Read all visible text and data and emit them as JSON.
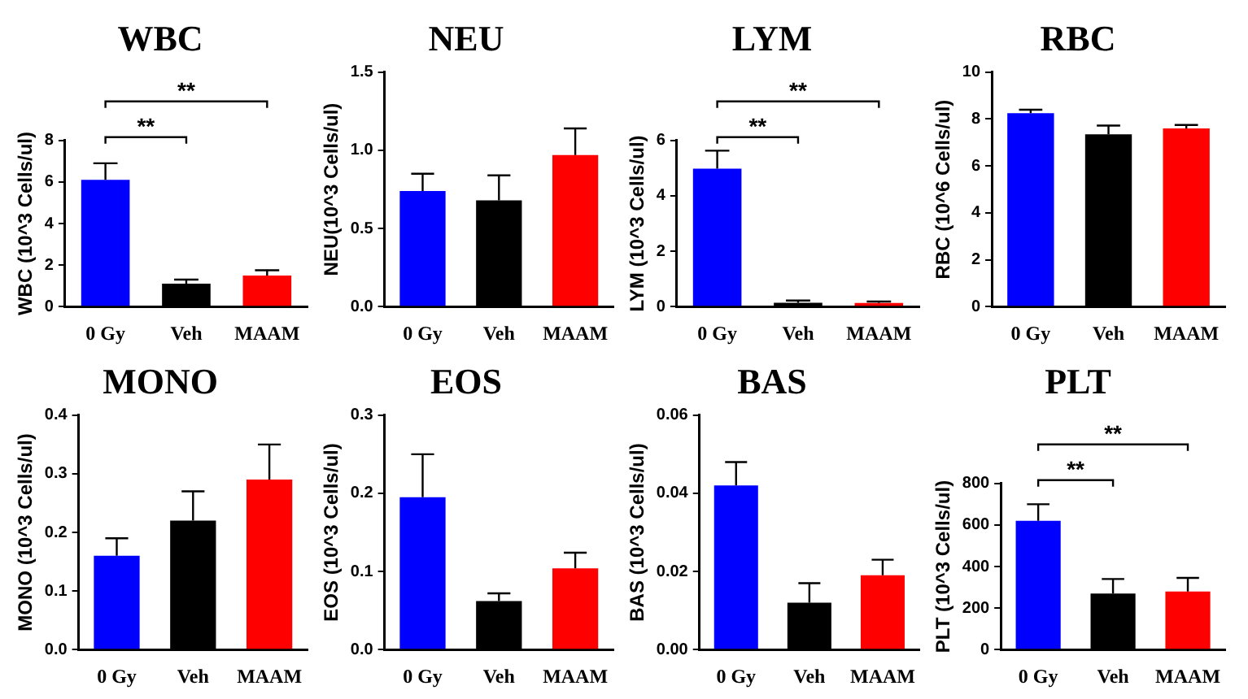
{
  "chart_data": [
    {
      "type": "bar",
      "title": "WBC",
      "ylabel": "WBC (10^3 Cells/ul)",
      "categories": [
        "0 Gy",
        "Veh",
        "MAAM"
      ],
      "values": [
        6.1,
        1.1,
        1.5
      ],
      "errors": [
        [
          6.1,
          6.9
        ],
        [
          1.1,
          1.3
        ],
        [
          1.5,
          1.75
        ]
      ],
      "colors": [
        "#0000ff",
        "#000000",
        "#ff0000"
      ],
      "ylim": [
        0,
        8
      ],
      "yticks": [
        0,
        2,
        4,
        6,
        8
      ],
      "grid": false,
      "annotations": [
        "**",
        "**"
      ]
    },
    {
      "type": "bar",
      "title": "NEU",
      "ylabel": "NEU(10^3 Cells/ul)",
      "categories": [
        "0 Gy",
        "Veh",
        "MAAM"
      ],
      "values": [
        0.74,
        0.68,
        0.97
      ],
      "errors": [
        [
          0.74,
          0.85
        ],
        [
          0.68,
          0.84
        ],
        [
          0.97,
          1.14
        ]
      ],
      "colors": [
        "#0000ff",
        "#000000",
        "#ff0000"
      ],
      "ylim": [
        0,
        1.5
      ],
      "yticks": [
        {
          "value": 0,
          "label": "0.0"
        },
        {
          "value": 0.5,
          "label": "0.5"
        },
        {
          "value": 1,
          "label": "1.0"
        },
        {
          "value": 1.5,
          "label": "1.5"
        }
      ],
      "grid": false
    },
    {
      "type": "bar",
      "title": "LYM",
      "ylabel": "LYM (10^3 Cells/ul)",
      "categories": [
        "0 Gy",
        "Veh",
        "MAAM"
      ],
      "values": [
        4.98,
        0.14,
        0.13
      ],
      "errors": [
        [
          4.98,
          5.63
        ],
        [
          0.14,
          0.22
        ],
        [
          0.13,
          0.18
        ]
      ],
      "colors": [
        "#0000ff",
        "#000000",
        "#ff0000"
      ],
      "ylim": [
        0,
        6
      ],
      "yticks": [
        0,
        2,
        4,
        6
      ],
      "grid": false,
      "annotations": [
        "**",
        "**"
      ]
    },
    {
      "type": "bar",
      "title": "RBC",
      "ylabel": "RBC (10^6 Cells/ul)",
      "categories": [
        "0 Gy",
        "Veh",
        "MAAM"
      ],
      "values": [
        8.25,
        7.35,
        7.6
      ],
      "errors": [
        [
          8.25,
          8.4
        ],
        [
          7.35,
          7.72
        ],
        [
          7.6,
          7.75
        ]
      ],
      "colors": [
        "#0000ff",
        "#000000",
        "#ff0000"
      ],
      "ylim": [
        0,
        10
      ],
      "yticks": [
        0,
        2,
        4,
        6,
        8,
        10
      ],
      "grid": false
    },
    {
      "type": "bar",
      "title": "MONO",
      "ylabel": "MONO (10^3 Cells/ul)",
      "categories": [
        "0 Gy",
        "Veh",
        "MAAM"
      ],
      "values": [
        0.16,
        0.22,
        0.29
      ],
      "errors": [
        [
          0.16,
          0.19
        ],
        [
          0.22,
          0.27
        ],
        [
          0.29,
          0.35
        ]
      ],
      "colors": [
        "#0000ff",
        "#000000",
        "#ff0000"
      ],
      "ylim": [
        0,
        0.4
      ],
      "yticks": [
        {
          "value": 0,
          "label": "0.0"
        },
        0.1,
        0.2,
        0.3,
        0.4
      ],
      "grid": false
    },
    {
      "type": "bar",
      "title": "EOS",
      "ylabel": "EOS (10^3 Cells/ul)",
      "categories": [
        "0 Gy",
        "Veh",
        "MAAM"
      ],
      "values": [
        0.195,
        0.062,
        0.104
      ],
      "errors": [
        [
          0.195,
          0.25
        ],
        [
          0.062,
          0.072
        ],
        [
          0.104,
          0.124
        ]
      ],
      "colors": [
        "#0000ff",
        "#000000",
        "#ff0000"
      ],
      "ylim": [
        0,
        0.3
      ],
      "yticks": [
        {
          "value": 0,
          "label": "0.0"
        },
        0.1,
        0.2,
        0.3
      ],
      "grid": false
    },
    {
      "type": "bar",
      "title": "BAS",
      "ylabel": "BAS (10^3 Cells/ul)",
      "categories": [
        "0 Gy",
        "Veh",
        "MAAM"
      ],
      "values": [
        0.042,
        0.012,
        0.019
      ],
      "errors": [
        [
          0.042,
          0.048
        ],
        [
          0.012,
          0.017
        ],
        [
          0.019,
          0.023
        ]
      ],
      "colors": [
        "#0000ff",
        "#000000",
        "#ff0000"
      ],
      "ylim": [
        0,
        0.06
      ],
      "yticks": [
        {
          "value": 0,
          "label": "0.00"
        },
        {
          "value": 0.02,
          "label": "0.02"
        },
        {
          "value": 0.04,
          "label": "0.04"
        },
        {
          "value": 0.06,
          "label": "0.06"
        }
      ],
      "grid": false
    },
    {
      "type": "bar",
      "title": "PLT",
      "ylabel": "PLT (10^3 Cells/ul)",
      "categories": [
        "0 Gy",
        "Veh",
        "MAAM"
      ],
      "values": [
        620,
        270,
        280
      ],
      "errors": [
        [
          620,
          700
        ],
        [
          270,
          340
        ],
        [
          280,
          345
        ]
      ],
      "colors": [
        "#0000ff",
        "#000000",
        "#ff0000"
      ],
      "ylim": [
        0,
        800
      ],
      "yticks": [
        0,
        200,
        400,
        600,
        800
      ],
      "grid": false,
      "annotations": [
        "**",
        "**"
      ]
    }
  ]
}
